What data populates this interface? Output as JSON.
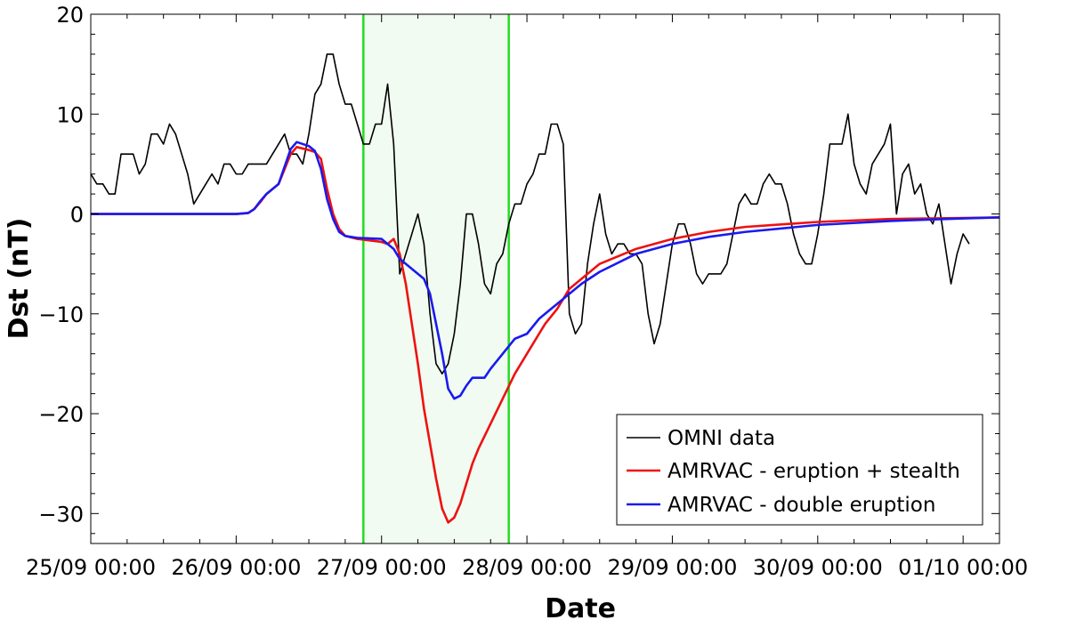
{
  "chart_data": {
    "type": "line",
    "xlabel": "Date",
    "ylabel": "Dst (nT)",
    "xlim": [
      "2024-09-25 00:00",
      "2024-10-01 06:00"
    ],
    "ylim": [
      -33,
      20
    ],
    "x_ticks": [
      {
        "date": "2024-09-25 00:00",
        "label": "25/09 00:00"
      },
      {
        "date": "2024-09-26 00:00",
        "label": "26/09 00:00"
      },
      {
        "date": "2024-09-27 00:00",
        "label": "27/09 00:00"
      },
      {
        "date": "2024-09-28 00:00",
        "label": "28/09 00:00"
      },
      {
        "date": "2024-09-29 00:00",
        "label": "29/09 00:00"
      },
      {
        "date": "2024-09-30 00:00",
        "label": "30/09 00:00"
      },
      {
        "date": "2024-10-01 00:00",
        "label": "01/10 00:00"
      }
    ],
    "y_ticks": [
      {
        "value": -30,
        "label": "−30"
      },
      {
        "value": -20,
        "label": "−20"
      },
      {
        "value": -10,
        "label": "−10"
      },
      {
        "value": 0,
        "label": "0"
      },
      {
        "value": 10,
        "label": "10"
      },
      {
        "value": 20,
        "label": "20"
      }
    ],
    "shaded_region": {
      "start": "2024-09-26 21:00",
      "end": "2024-09-27 21:00",
      "fill": "#f1fbf1",
      "edge_color": "#22dd22"
    },
    "legend_position": "lower-right",
    "grid": false,
    "series": [
      {
        "name": "OMNI data",
        "color": "#000000",
        "points": [
          [
            "2024-09-25 00:00",
            4
          ],
          [
            "2024-09-25 01:00",
            3
          ],
          [
            "2024-09-25 02:00",
            3
          ],
          [
            "2024-09-25 03:00",
            2
          ],
          [
            "2024-09-25 04:00",
            2
          ],
          [
            "2024-09-25 05:00",
            6
          ],
          [
            "2024-09-25 06:00",
            6
          ],
          [
            "2024-09-25 07:00",
            6
          ],
          [
            "2024-09-25 08:00",
            4
          ],
          [
            "2024-09-25 09:00",
            5
          ],
          [
            "2024-09-25 10:00",
            8
          ],
          [
            "2024-09-25 11:00",
            8
          ],
          [
            "2024-09-25 12:00",
            7
          ],
          [
            "2024-09-25 13:00",
            9
          ],
          [
            "2024-09-25 14:00",
            8
          ],
          [
            "2024-09-25 15:00",
            6
          ],
          [
            "2024-09-25 16:00",
            4
          ],
          [
            "2024-09-25 17:00",
            1
          ],
          [
            "2024-09-25 18:00",
            2
          ],
          [
            "2024-09-25 19:00",
            3
          ],
          [
            "2024-09-25 20:00",
            4
          ],
          [
            "2024-09-25 21:00",
            3
          ],
          [
            "2024-09-25 22:00",
            5
          ],
          [
            "2024-09-25 23:00",
            5
          ],
          [
            "2024-09-26 00:00",
            4
          ],
          [
            "2024-09-26 01:00",
            4
          ],
          [
            "2024-09-26 02:00",
            5
          ],
          [
            "2024-09-26 03:00",
            5
          ],
          [
            "2024-09-26 04:00",
            5
          ],
          [
            "2024-09-26 05:00",
            5
          ],
          [
            "2024-09-26 06:00",
            6
          ],
          [
            "2024-09-26 07:00",
            7
          ],
          [
            "2024-09-26 08:00",
            8
          ],
          [
            "2024-09-26 09:00",
            6
          ],
          [
            "2024-09-26 10:00",
            6
          ],
          [
            "2024-09-26 11:00",
            5
          ],
          [
            "2024-09-26 12:00",
            8
          ],
          [
            "2024-09-26 13:00",
            12
          ],
          [
            "2024-09-26 14:00",
            13
          ],
          [
            "2024-09-26 15:00",
            16
          ],
          [
            "2024-09-26 16:00",
            16
          ],
          [
            "2024-09-26 17:00",
            13
          ],
          [
            "2024-09-26 18:00",
            11
          ],
          [
            "2024-09-26 19:00",
            11
          ],
          [
            "2024-09-26 20:00",
            9
          ],
          [
            "2024-09-26 21:00",
            7
          ],
          [
            "2024-09-26 22:00",
            7
          ],
          [
            "2024-09-26 23:00",
            9
          ],
          [
            "2024-09-27 00:00",
            9
          ],
          [
            "2024-09-27 01:00",
            13
          ],
          [
            "2024-09-27 02:00",
            7
          ],
          [
            "2024-09-27 03:00",
            -6
          ],
          [
            "2024-09-27 04:00",
            -4
          ],
          [
            "2024-09-27 05:00",
            -2
          ],
          [
            "2024-09-27 06:00",
            0
          ],
          [
            "2024-09-27 07:00",
            -3
          ],
          [
            "2024-09-27 08:00",
            -10
          ],
          [
            "2024-09-27 09:00",
            -15
          ],
          [
            "2024-09-27 10:00",
            -16
          ],
          [
            "2024-09-27 11:00",
            -15
          ],
          [
            "2024-09-27 12:00",
            -12
          ],
          [
            "2024-09-27 13:00",
            -7
          ],
          [
            "2024-09-27 14:00",
            0
          ],
          [
            "2024-09-27 15:00",
            0
          ],
          [
            "2024-09-27 16:00",
            -3
          ],
          [
            "2024-09-27 17:00",
            -7
          ],
          [
            "2024-09-27 18:00",
            -8
          ],
          [
            "2024-09-27 19:00",
            -5
          ],
          [
            "2024-09-27 20:00",
            -4
          ],
          [
            "2024-09-27 21:00",
            -1
          ],
          [
            "2024-09-27 22:00",
            1
          ],
          [
            "2024-09-27 23:00",
            1
          ],
          [
            "2024-09-28 00:00",
            3
          ],
          [
            "2024-09-28 01:00",
            4
          ],
          [
            "2024-09-28 02:00",
            6
          ],
          [
            "2024-09-28 03:00",
            6
          ],
          [
            "2024-09-28 04:00",
            9
          ],
          [
            "2024-09-28 05:00",
            9
          ],
          [
            "2024-09-28 06:00",
            7
          ],
          [
            "2024-09-28 07:00",
            -10
          ],
          [
            "2024-09-28 08:00",
            -12
          ],
          [
            "2024-09-28 09:00",
            -11
          ],
          [
            "2024-09-28 10:00",
            -5
          ],
          [
            "2024-09-28 11:00",
            -1
          ],
          [
            "2024-09-28 12:00",
            2
          ],
          [
            "2024-09-28 13:00",
            -2
          ],
          [
            "2024-09-28 14:00",
            -4
          ],
          [
            "2024-09-28 15:00",
            -3
          ],
          [
            "2024-09-28 16:00",
            -3
          ],
          [
            "2024-09-28 17:00",
            -4
          ],
          [
            "2024-09-28 18:00",
            -4
          ],
          [
            "2024-09-28 19:00",
            -5
          ],
          [
            "2024-09-28 20:00",
            -10
          ],
          [
            "2024-09-28 21:00",
            -13
          ],
          [
            "2024-09-28 22:00",
            -11
          ],
          [
            "2024-09-28 23:00",
            -7
          ],
          [
            "2024-09-29 00:00",
            -3
          ],
          [
            "2024-09-29 01:00",
            -1
          ],
          [
            "2024-09-29 02:00",
            -1
          ],
          [
            "2024-09-29 03:00",
            -3
          ],
          [
            "2024-09-29 04:00",
            -6
          ],
          [
            "2024-09-29 05:00",
            -7
          ],
          [
            "2024-09-29 06:00",
            -6
          ],
          [
            "2024-09-29 07:00",
            -6
          ],
          [
            "2024-09-29 08:00",
            -6
          ],
          [
            "2024-09-29 09:00",
            -5
          ],
          [
            "2024-09-29 10:00",
            -2
          ],
          [
            "2024-09-29 11:00",
            1
          ],
          [
            "2024-09-29 12:00",
            2
          ],
          [
            "2024-09-29 13:00",
            1
          ],
          [
            "2024-09-29 14:00",
            1
          ],
          [
            "2024-09-29 15:00",
            3
          ],
          [
            "2024-09-29 16:00",
            4
          ],
          [
            "2024-09-29 17:00",
            3
          ],
          [
            "2024-09-29 18:00",
            3
          ],
          [
            "2024-09-29 19:00",
            1
          ],
          [
            "2024-09-29 20:00",
            -2
          ],
          [
            "2024-09-29 21:00",
            -4
          ],
          [
            "2024-09-29 22:00",
            -5
          ],
          [
            "2024-09-29 23:00",
            -5
          ],
          [
            "2024-09-30 00:00",
            -2
          ],
          [
            "2024-09-30 01:00",
            2
          ],
          [
            "2024-09-30 02:00",
            7
          ],
          [
            "2024-09-30 03:00",
            7
          ],
          [
            "2024-09-30 04:00",
            7
          ],
          [
            "2024-09-30 05:00",
            10
          ],
          [
            "2024-09-30 06:00",
            5
          ],
          [
            "2024-09-30 07:00",
            3
          ],
          [
            "2024-09-30 08:00",
            2
          ],
          [
            "2024-09-30 09:00",
            5
          ],
          [
            "2024-09-30 10:00",
            6
          ],
          [
            "2024-09-30 11:00",
            7
          ],
          [
            "2024-09-30 12:00",
            9
          ],
          [
            "2024-09-30 13:00",
            0
          ],
          [
            "2024-09-30 14:00",
            4
          ],
          [
            "2024-09-30 15:00",
            5
          ],
          [
            "2024-09-30 16:00",
            2
          ],
          [
            "2024-09-30 17:00",
            3
          ],
          [
            "2024-09-30 18:00",
            0
          ],
          [
            "2024-09-30 19:00",
            -1
          ],
          [
            "2024-09-30 20:00",
            1
          ],
          [
            "2024-09-30 21:00",
            -3
          ],
          [
            "2024-09-30 22:00",
            -7
          ],
          [
            "2024-09-30 23:00",
            -4
          ],
          [
            "2024-10-01 00:00",
            -2
          ],
          [
            "2024-10-01 01:00",
            -3
          ]
        ]
      },
      {
        "name": "AMRVAC - eruption + stealth",
        "color": "#ee1111",
        "points": [
          [
            "2024-09-25 00:00",
            0
          ],
          [
            "2024-09-26 00:00",
            0
          ],
          [
            "2024-09-26 02:00",
            0.1
          ],
          [
            "2024-09-26 03:00",
            0.5
          ],
          [
            "2024-09-26 04:00",
            1.2
          ],
          [
            "2024-09-26 05:00",
            2
          ],
          [
            "2024-09-26 07:00",
            3
          ],
          [
            "2024-09-26 09:00",
            6
          ],
          [
            "2024-09-26 10:00",
            6.7
          ],
          [
            "2024-09-26 12:00",
            6.4
          ],
          [
            "2024-09-26 13:00",
            6.2
          ],
          [
            "2024-09-26 14:00",
            5.5
          ],
          [
            "2024-09-26 15:00",
            2.5
          ],
          [
            "2024-09-26 16:00",
            0
          ],
          [
            "2024-09-26 17:00",
            -1.5
          ],
          [
            "2024-09-26 18:00",
            -2.2
          ],
          [
            "2024-09-26 20:00",
            -2.5
          ],
          [
            "2024-09-27 00:00",
            -2.8
          ],
          [
            "2024-09-27 01:00",
            -3
          ],
          [
            "2024-09-27 02:00",
            -2.5
          ],
          [
            "2024-09-27 03:00",
            -4
          ],
          [
            "2024-09-27 04:00",
            -7
          ],
          [
            "2024-09-27 05:00",
            -11
          ],
          [
            "2024-09-27 06:00",
            -15
          ],
          [
            "2024-09-27 07:00",
            -19.5
          ],
          [
            "2024-09-27 08:00",
            -23
          ],
          [
            "2024-09-27 09:00",
            -26.5
          ],
          [
            "2024-09-27 10:00",
            -29.5
          ],
          [
            "2024-09-27 11:00",
            -30.9
          ],
          [
            "2024-09-27 12:00",
            -30.4
          ],
          [
            "2024-09-27 13:00",
            -29
          ],
          [
            "2024-09-27 14:00",
            -27
          ],
          [
            "2024-09-27 15:00",
            -25
          ],
          [
            "2024-09-27 16:00",
            -23.5
          ],
          [
            "2024-09-27 18:00",
            -21
          ],
          [
            "2024-09-27 20:00",
            -18.5
          ],
          [
            "2024-09-27 22:00",
            -16
          ],
          [
            "2024-09-28 00:00",
            -14
          ],
          [
            "2024-09-28 02:00",
            -12
          ],
          [
            "2024-09-28 03:00",
            -11
          ],
          [
            "2024-09-28 05:00",
            -9.5
          ],
          [
            "2024-09-28 06:00",
            -8.5
          ],
          [
            "2024-09-28 07:00",
            -7.5
          ],
          [
            "2024-09-28 09:00",
            -6.5
          ],
          [
            "2024-09-28 12:00",
            -5
          ],
          [
            "2024-09-28 18:00",
            -3.5
          ],
          [
            "2024-09-29 00:00",
            -2.5
          ],
          [
            "2024-09-29 06:00",
            -1.8
          ],
          [
            "2024-09-29 12:00",
            -1.3
          ],
          [
            "2024-09-30 00:00",
            -0.8
          ],
          [
            "2024-09-30 12:00",
            -0.5
          ],
          [
            "2024-10-01 00:00",
            -0.4
          ],
          [
            "2024-10-01 06:00",
            -0.35
          ]
        ]
      },
      {
        "name": "AMRVAC - double eruption",
        "color": "#1a1aee",
        "points": [
          [
            "2024-09-25 00:00",
            0
          ],
          [
            "2024-09-26 00:00",
            0
          ],
          [
            "2024-09-26 02:00",
            0.1
          ],
          [
            "2024-09-26 03:00",
            0.5
          ],
          [
            "2024-09-26 04:00",
            1.3
          ],
          [
            "2024-09-26 05:00",
            2
          ],
          [
            "2024-09-26 07:00",
            3
          ],
          [
            "2024-09-26 09:00",
            6.5
          ],
          [
            "2024-09-26 10:00",
            7.2
          ],
          [
            "2024-09-26 12:00",
            6.8
          ],
          [
            "2024-09-26 13:00",
            6.3
          ],
          [
            "2024-09-26 14:00",
            4.5
          ],
          [
            "2024-09-26 15:00",
            1.5
          ],
          [
            "2024-09-26 16:00",
            -0.5
          ],
          [
            "2024-09-26 17:00",
            -1.8
          ],
          [
            "2024-09-26 18:00",
            -2.2
          ],
          [
            "2024-09-26 20:00",
            -2.4
          ],
          [
            "2024-09-27 00:00",
            -2.5
          ],
          [
            "2024-09-27 01:00",
            -3
          ],
          [
            "2024-09-27 02:00",
            -3.5
          ],
          [
            "2024-09-27 03:00",
            -4.5
          ],
          [
            "2024-09-27 05:00",
            -5.5
          ],
          [
            "2024-09-27 06:00",
            -6
          ],
          [
            "2024-09-27 07:00",
            -6.5
          ],
          [
            "2024-09-27 08:00",
            -8
          ],
          [
            "2024-09-27 09:00",
            -11
          ],
          [
            "2024-09-27 10:00",
            -14
          ],
          [
            "2024-09-27 11:00",
            -17.5
          ],
          [
            "2024-09-27 12:00",
            -18.5
          ],
          [
            "2024-09-27 13:00",
            -18.2
          ],
          [
            "2024-09-27 14:00",
            -17.2
          ],
          [
            "2024-09-27 15:00",
            -16.4
          ],
          [
            "2024-09-27 16:00",
            -16.4
          ],
          [
            "2024-09-27 17:00",
            -16.4
          ],
          [
            "2024-09-27 18:00",
            -15.5
          ],
          [
            "2024-09-27 20:00",
            -14
          ],
          [
            "2024-09-27 22:00",
            -12.5
          ],
          [
            "2024-09-28 00:00",
            -12
          ],
          [
            "2024-09-28 02:00",
            -10.5
          ],
          [
            "2024-09-28 04:00",
            -9.5
          ],
          [
            "2024-09-28 06:00",
            -8.5
          ],
          [
            "2024-09-28 09:00",
            -7
          ],
          [
            "2024-09-28 12:00",
            -5.8
          ],
          [
            "2024-09-28 18:00",
            -4
          ],
          [
            "2024-09-29 00:00",
            -3
          ],
          [
            "2024-09-29 06:00",
            -2.3
          ],
          [
            "2024-09-29 12:00",
            -1.8
          ],
          [
            "2024-09-30 00:00",
            -1.1
          ],
          [
            "2024-09-30 12:00",
            -0.7
          ],
          [
            "2024-10-01 00:00",
            -0.45
          ],
          [
            "2024-10-01 06:00",
            -0.35
          ]
        ]
      }
    ]
  }
}
